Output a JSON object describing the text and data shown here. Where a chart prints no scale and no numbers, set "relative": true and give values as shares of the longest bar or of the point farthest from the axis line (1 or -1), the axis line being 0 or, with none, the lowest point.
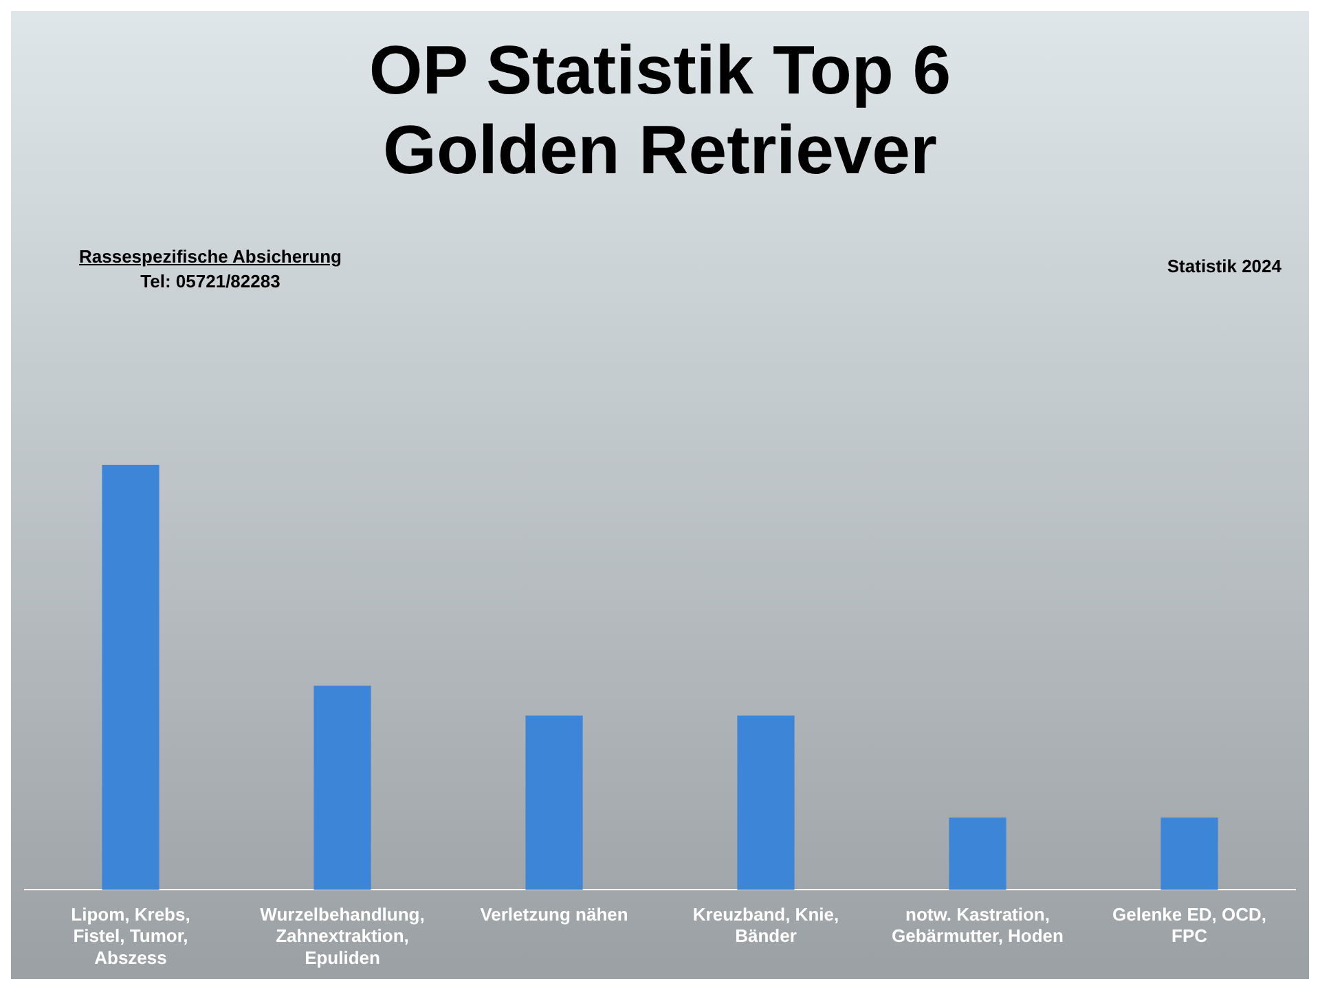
{
  "chart_data": {
    "type": "bar",
    "title": "OP Statistik Top 6\nGolden Retriever",
    "relative": true,
    "color": "#3d85d6",
    "categories": [
      "Lipom, Krebs, Fistel, Tumor, Abszess",
      "Wurzelbehandlung, Zahnextraktion, Epuliden",
      "Verletzung nähen",
      "Kreuzband, Knie, Bänder",
      "notw. Kastration, Gebärmutter, Hoden",
      "Gelenke ED, OCD, FPC"
    ],
    "values": [
      1,
      0.48,
      0.41,
      0.41,
      0.17,
      0.17
    ],
    "annotations": [
      "Rassespezifische  Absicherung",
      "Tel: 05721/82283",
      "Statistik 2024"
    ]
  }
}
